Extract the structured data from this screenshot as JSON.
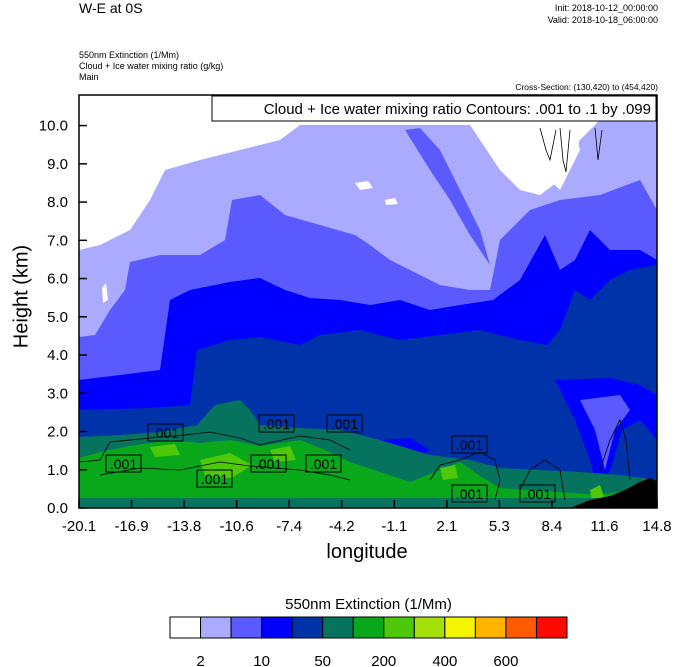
{
  "header": {
    "title": "W-E at 0S",
    "init": "Init: 2018-10-12_00:00:00",
    "valid": "Valid: 2018-10-18_06:00:00",
    "subtitle_lines": [
      "550nm Extinction   (1/Mm)",
      "Cloud + Ice water mixing ratio   (g/kg)",
      "Main"
    ],
    "cross_section": "Cross-Section: (130,420) to (454,420)"
  },
  "chart_data": {
    "type": "heatmap",
    "title": "550nm Extinction  (1/Mm)",
    "overlay_legend": "Cloud + Ice water mixing ratio Contours: .001 to .1 by .099",
    "xlabel": "longitude",
    "ylabel": "Height (km)",
    "xlim": [
      -20.1,
      14.8
    ],
    "ylim": [
      0.0,
      10.8
    ],
    "xticks": [
      "-20.1",
      "-16.9",
      "-13.8",
      "-10.6",
      "-7.4",
      "-4.2",
      "-1.1",
      "2.1",
      "5.3",
      "8.4",
      "11.6",
      "14.8"
    ],
    "yticks": [
      {
        "value": 0,
        "label": "0.0"
      },
      {
        "value": 1,
        "label": "1.0"
      },
      {
        "value": 2,
        "label": "2.0"
      },
      {
        "value": 3,
        "label": "3.0"
      },
      {
        "value": 4,
        "label": "4.0"
      },
      {
        "value": 5,
        "label": "5.0"
      },
      {
        "value": 6,
        "label": "6.0"
      },
      {
        "value": 7,
        "label": "7.0"
      },
      {
        "value": 8,
        "label": "8.0"
      },
      {
        "value": 9,
        "label": "9.0"
      },
      {
        "value": 10,
        "label": "10.0"
      }
    ],
    "colorbar": {
      "colors": [
        "#ffffff",
        "#aaaaff",
        "#5a5aff",
        "#0000ff",
        "#0033aa",
        "#06735f",
        "#08a81a",
        "#50c80a",
        "#a6e00a",
        "#f5f500",
        "#ffb400",
        "#ff5a00",
        "#ff0a00"
      ],
      "labels": [
        {
          "boundary": 1,
          "label": "2"
        },
        {
          "boundary": 3,
          "label": "10"
        },
        {
          "boundary": 5,
          "label": "50"
        },
        {
          "boundary": 7,
          "label": "200"
        },
        {
          "boundary": 9,
          "label": "400"
        },
        {
          "boundary": 11,
          "label": "600"
        }
      ]
    },
    "contour_labels": [
      ".001",
      ".001",
      ".001",
      ".001",
      ".001",
      ".001",
      ".001",
      ".001",
      ".001",
      ".001"
    ]
  }
}
